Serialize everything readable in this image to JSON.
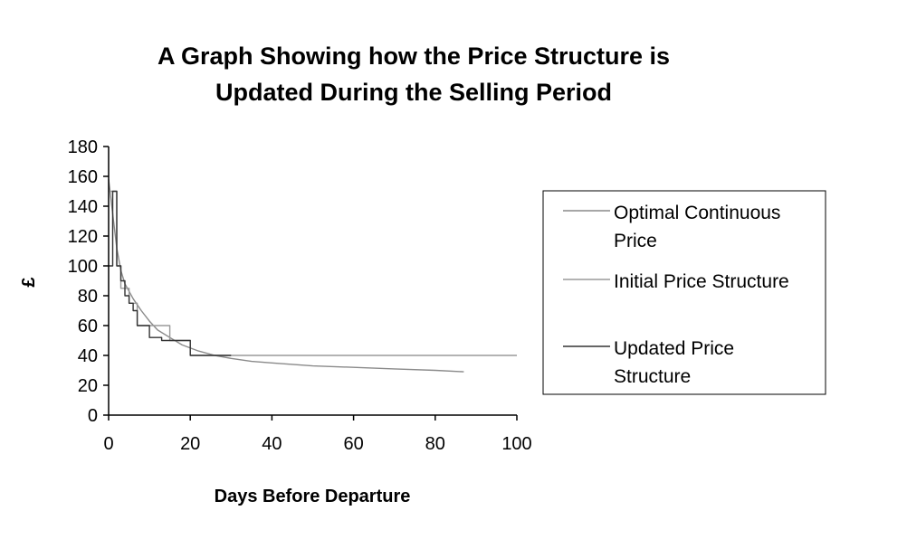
{
  "chart_data": {
    "type": "line",
    "title_lines": [
      "A Graph Showing how the Price Structure is",
      "Updated During the Selling Period"
    ],
    "xlabel": "Days Before Departure",
    "ylabel": "£",
    "xlim": [
      0,
      100
    ],
    "ylim": [
      0,
      180
    ],
    "xticks": [
      0,
      20,
      40,
      60,
      80,
      100
    ],
    "yticks": [
      0,
      20,
      40,
      60,
      80,
      100,
      120,
      140,
      160,
      180
    ],
    "grid": false,
    "legend_position": "right",
    "series": [
      {
        "name": "Optimal Continuous Price",
        "label_lines": [
          "Optimal Continuous",
          "Price"
        ],
        "style": "smooth",
        "color": "#8a8a8a",
        "points": [
          [
            0,
            158
          ],
          [
            1,
            135
          ],
          [
            2,
            112
          ],
          [
            3,
            97
          ],
          [
            4,
            88
          ],
          [
            6,
            78
          ],
          [
            8,
            70
          ],
          [
            10,
            63
          ],
          [
            12,
            57
          ],
          [
            15,
            52
          ],
          [
            18,
            47
          ],
          [
            22,
            43
          ],
          [
            26,
            40
          ],
          [
            30,
            38
          ],
          [
            35,
            36
          ],
          [
            40,
            35
          ],
          [
            50,
            33
          ],
          [
            60,
            32
          ],
          [
            70,
            31
          ],
          [
            80,
            30
          ],
          [
            87,
            29
          ]
        ]
      },
      {
        "name": "Initial Price Structure",
        "label_lines": [
          "Initial Price Structure"
        ],
        "style": "step",
        "color": "#9a9a9a",
        "points": [
          [
            0,
            150
          ],
          [
            2,
            150
          ],
          [
            2,
            100
          ],
          [
            3,
            100
          ],
          [
            3,
            85
          ],
          [
            5,
            85
          ],
          [
            5,
            75
          ],
          [
            7,
            75
          ],
          [
            7,
            60
          ],
          [
            15,
            60
          ],
          [
            15,
            50
          ],
          [
            20,
            50
          ],
          [
            20,
            40
          ],
          [
            100,
            40
          ]
        ]
      },
      {
        "name": "Updated Price Structure",
        "label_lines": [
          "Updated Price",
          "Structure"
        ],
        "style": "step",
        "color": "#333333",
        "points": [
          [
            0,
            100
          ],
          [
            1,
            100
          ],
          [
            1,
            150
          ],
          [
            2,
            150
          ],
          [
            2,
            100
          ],
          [
            3,
            100
          ],
          [
            3,
            90
          ],
          [
            4,
            90
          ],
          [
            4,
            80
          ],
          [
            5,
            80
          ],
          [
            5,
            75
          ],
          [
            6,
            75
          ],
          [
            6,
            70
          ],
          [
            7,
            70
          ],
          [
            7,
            60
          ],
          [
            10,
            60
          ],
          [
            10,
            52
          ],
          [
            13,
            52
          ],
          [
            13,
            50
          ],
          [
            20,
            50
          ],
          [
            20,
            40
          ],
          [
            30,
            40
          ]
        ]
      }
    ]
  }
}
